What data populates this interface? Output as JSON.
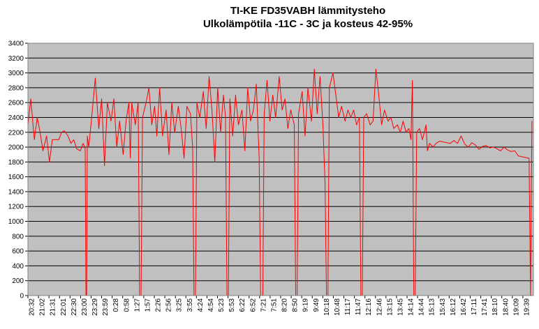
{
  "chart_data": {
    "type": "line",
    "title": [
      "TI-KE FD35VABH lämmitysteho",
      "Ulkolämpötila  -11C - 3C ja kosteus 42-95%"
    ],
    "xlabel": "",
    "ylabel": "",
    "ylim": [
      0,
      3400
    ],
    "yticks": [
      0,
      200,
      400,
      600,
      800,
      1000,
      1200,
      1400,
      1600,
      1800,
      2000,
      2200,
      2400,
      2600,
      2800,
      3000,
      3200,
      3400
    ],
    "xticks": [
      "20:32",
      "21:02",
      "21:31",
      "22:01",
      "22:30",
      "23:00",
      "23:29",
      "23:59",
      "0:28",
      "0:58",
      "1:27",
      "1:57",
      "2:26",
      "2:56",
      "3:25",
      "3:55",
      "4:24",
      "4:54",
      "5:23",
      "5:53",
      "6:22",
      "6:52",
      "7:21",
      "7:51",
      "8:20",
      "8:50",
      "9:19",
      "9:49",
      "10:18",
      "10:48",
      "11:17",
      "11:47",
      "12:16",
      "12:46",
      "13:15",
      "13:45",
      "14:14",
      "14:44",
      "15:13",
      "15:43",
      "16:12",
      "16:42",
      "17:11",
      "17:41",
      "18:10",
      "18:40",
      "19:09",
      "19:39"
    ],
    "grid": true,
    "legend": "none",
    "colors": {
      "line": "#ff0000",
      "plot_bg": "#c0c0c0",
      "grid": "#000000"
    },
    "series": [
      {
        "values": [
          [
            0,
            2300
          ],
          [
            4,
            2650
          ],
          [
            9,
            2100
          ],
          [
            13,
            2400
          ],
          [
            17,
            2200
          ],
          [
            21,
            1950
          ],
          [
            26,
            2150
          ],
          [
            30,
            1800
          ],
          [
            34,
            2100
          ],
          [
            43,
            2100
          ],
          [
            47,
            2200
          ],
          [
            51,
            2220
          ],
          [
            56,
            2150
          ],
          [
            60,
            2050
          ],
          [
            64,
            2100
          ],
          [
            68,
            1980
          ],
          [
            73,
            1950
          ],
          [
            77,
            2050
          ],
          [
            80,
            1980
          ],
          [
            81,
            0
          ],
          [
            82,
            0
          ],
          [
            83,
            2150
          ],
          [
            85,
            2000
          ],
          [
            90,
            2500
          ],
          [
            94,
            2930
          ],
          [
            99,
            2250
          ],
          [
            103,
            2650
          ],
          [
            107,
            1750
          ],
          [
            111,
            2600
          ],
          [
            116,
            2350
          ],
          [
            120,
            2650
          ],
          [
            124,
            2000
          ],
          [
            128,
            2350
          ],
          [
            133,
            1900
          ],
          [
            137,
            2350
          ],
          [
            141,
            2600
          ],
          [
            143,
            1850
          ],
          [
            145,
            2600
          ],
          [
            150,
            2300
          ],
          [
            154,
            2600
          ],
          [
            156,
            0
          ],
          [
            158,
            0
          ],
          [
            160,
            2400
          ],
          [
            165,
            2600
          ],
          [
            169,
            2800
          ],
          [
            173,
            2300
          ],
          [
            177,
            2550
          ],
          [
            180,
            2150
          ],
          [
            184,
            2800
          ],
          [
            188,
            2150
          ],
          [
            193,
            2500
          ],
          [
            197,
            1900
          ],
          [
            201,
            2600
          ],
          [
            205,
            2200
          ],
          [
            210,
            2550
          ],
          [
            214,
            2250
          ],
          [
            218,
            1850
          ],
          [
            222,
            2550
          ],
          [
            227,
            2450
          ],
          [
            230,
            2000
          ],
          [
            232,
            0
          ],
          [
            234,
            0
          ],
          [
            236,
            2600
          ],
          [
            240,
            2400
          ],
          [
            245,
            2750
          ],
          [
            249,
            2250
          ],
          [
            253,
            2950
          ],
          [
            257,
            2500
          ],
          [
            261,
            1800
          ],
          [
            265,
            2800
          ],
          [
            269,
            2200
          ],
          [
            273,
            2700
          ],
          [
            276,
            2400
          ],
          [
            278,
            0
          ],
          [
            280,
            0
          ],
          [
            282,
            2650
          ],
          [
            286,
            2150
          ],
          [
            290,
            2700
          ],
          [
            294,
            2300
          ],
          [
            299,
            2500
          ],
          [
            303,
            1950
          ],
          [
            307,
            2800
          ],
          [
            311,
            2350
          ],
          [
            315,
            2500
          ],
          [
            319,
            2850
          ],
          [
            323,
            1850
          ],
          [
            325,
            0
          ],
          [
            328,
            0
          ],
          [
            330,
            2450
          ],
          [
            334,
            2900
          ],
          [
            338,
            2350
          ],
          [
            342,
            2700
          ],
          [
            346,
            2400
          ],
          [
            351,
            2950
          ],
          [
            355,
            2500
          ],
          [
            359,
            2650
          ],
          [
            363,
            2250
          ],
          [
            367,
            2500
          ],
          [
            372,
            2300
          ],
          [
            374,
            0
          ],
          [
            376,
            0
          ],
          [
            378,
            2450
          ],
          [
            383,
            2750
          ],
          [
            387,
            2150
          ],
          [
            391,
            2800
          ],
          [
            396,
            2350
          ],
          [
            400,
            3050
          ],
          [
            404,
            2450
          ],
          [
            408,
            2950
          ],
          [
            412,
            2300
          ],
          [
            415,
            1500
          ],
          [
            417,
            0
          ],
          [
            419,
            0
          ],
          [
            421,
            2800
          ],
          [
            426,
            3000
          ],
          [
            430,
            2700
          ],
          [
            434,
            2400
          ],
          [
            438,
            2550
          ],
          [
            443,
            2350
          ],
          [
            447,
            2500
          ],
          [
            451,
            2400
          ],
          [
            455,
            2500
          ],
          [
            459,
            2300
          ],
          [
            463,
            2400
          ],
          [
            465,
            0
          ],
          [
            467,
            0
          ],
          [
            469,
            2400
          ],
          [
            473,
            2450
          ],
          [
            478,
            2300
          ],
          [
            482,
            2350
          ],
          [
            486,
            3050
          ],
          [
            490,
            2700
          ],
          [
            494,
            2300
          ],
          [
            498,
            2500
          ],
          [
            503,
            2350
          ],
          [
            507,
            2400
          ],
          [
            511,
            2250
          ],
          [
            516,
            2300
          ],
          [
            520,
            2200
          ],
          [
            524,
            2350
          ],
          [
            528,
            2200
          ],
          [
            532,
            2250
          ],
          [
            535,
            2100
          ],
          [
            537,
            2900
          ],
          [
            539,
            0
          ],
          [
            541,
            0
          ],
          [
            543,
            2200
          ],
          [
            547,
            2250
          ],
          [
            551,
            2100
          ],
          [
            556,
            2300
          ],
          [
            558,
            1950
          ],
          [
            561,
            2050
          ],
          [
            566,
            2000
          ],
          [
            570,
            2050
          ],
          [
            575,
            2080
          ],
          [
            580,
            2070
          ],
          [
            585,
            2060
          ],
          [
            590,
            2050
          ],
          [
            595,
            2090
          ],
          [
            600,
            2050
          ],
          [
            605,
            2150
          ],
          [
            610,
            2040
          ],
          [
            615,
            2000
          ],
          [
            620,
            2060
          ],
          [
            625,
            2030
          ],
          [
            630,
            1970
          ],
          [
            635,
            2010
          ],
          [
            640,
            2020
          ],
          [
            645,
            1990
          ],
          [
            650,
            2000
          ],
          [
            655,
            1980
          ],
          [
            660,
            1950
          ],
          [
            665,
            2000
          ],
          [
            670,
            1960
          ],
          [
            675,
            1940
          ],
          [
            680,
            1950
          ],
          [
            685,
            1880
          ],
          [
            690,
            1870
          ],
          [
            695,
            1860
          ],
          [
            700,
            1850
          ],
          [
            702,
            0
          ],
          [
            704,
            2350
          ]
        ]
      }
    ],
    "x_span": 706
  }
}
